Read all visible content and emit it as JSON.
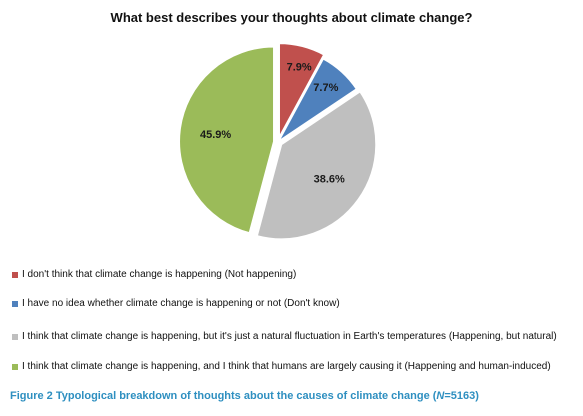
{
  "chart_data": {
    "type": "pie",
    "title": "What best describes your thoughts about climate change?",
    "slices": [
      {
        "label": "I don't think that climate change is happening (Not happening)",
        "value": 7.9,
        "value_label": "7.9%",
        "color": "#c0504d",
        "exploded": true
      },
      {
        "label": "I have no idea whether climate change is happening or not (Don't know)",
        "value": 7.7,
        "value_label": "7.7%",
        "color": "#4f81bd",
        "exploded": false
      },
      {
        "label": "I think that climate change is happening, but it's just a natural fluctuation in Earth's temperatures (Happening, but natural)",
        "value": 38.6,
        "value_label": "38.6%",
        "color": "#bfbfbf",
        "exploded": true
      },
      {
        "label": "I think that climate change is happening, and I think that humans are largely causing it (Happening and human-induced)",
        "value": 45.9,
        "value_label": "45.9%",
        "color": "#9bbb59",
        "exploded": true
      }
    ],
    "legend_placement": "bottom"
  },
  "caption": {
    "prefix": "Figure 2 Typological breakdown of thoughts about the causes of climate change (",
    "n_symbol": "N",
    "suffix": "=5163)"
  }
}
